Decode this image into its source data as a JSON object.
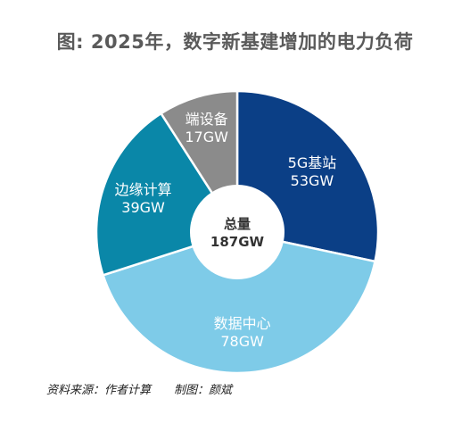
{
  "title": "图: 2025年，数字新基建增加的电力负荷",
  "chart_data": {
    "type": "pie",
    "variant": "donut",
    "title": "图: 2025年，数字新基建增加的电力负荷",
    "unit": "GW",
    "center": {
      "label": "总量",
      "value_text": "187GW",
      "value": 187
    },
    "slices": [
      {
        "name": "5G基站",
        "value": 53,
        "value_text": "53GW",
        "color": "#0b3f86"
      },
      {
        "name": "数据中心",
        "value": 78,
        "value_text": "78GW",
        "color": "#7ecbe8"
      },
      {
        "name": "边缘计算",
        "value": 39,
        "value_text": "39GW",
        "color": "#0a87a8"
      },
      {
        "name": "端设备",
        "value": 17,
        "value_text": "17GW",
        "color": "#8b8b8b"
      }
    ]
  },
  "footer": {
    "source": "资料来源：作者计算",
    "credit": "制图：颜斌"
  }
}
